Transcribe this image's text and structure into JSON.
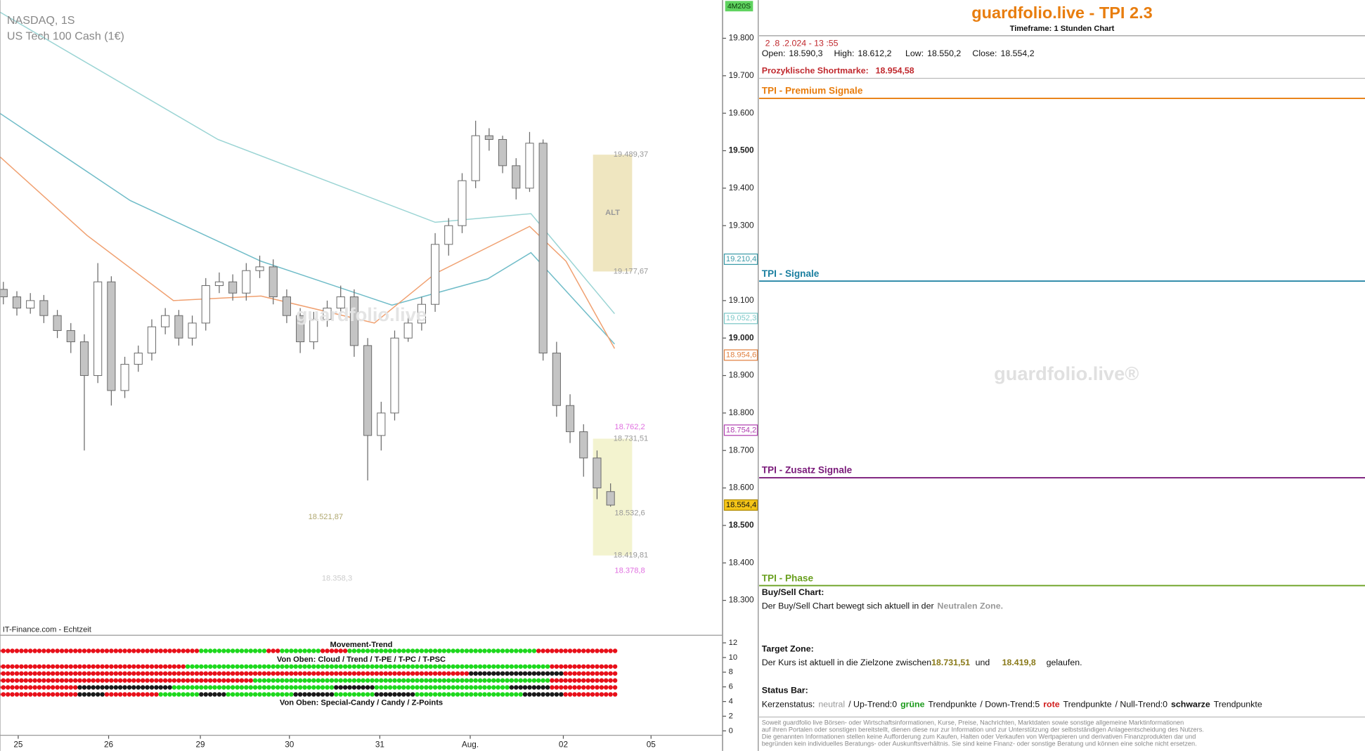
{
  "chart_data": {
    "type": "candlestick",
    "title": "NASDAQ, 1S",
    "subtitle": "US Tech 100 Cash (1€)",
    "source": "IT-Finance.com - Echtzeit",
    "timer": "4M20S",
    "watermark": "guardfolio.live",
    "x": [
      0,
      1,
      2,
      3,
      4,
      5,
      6,
      7,
      8,
      9,
      10,
      11,
      12,
      13,
      14,
      15,
      16,
      17,
      18,
      19,
      20,
      21,
      22,
      23,
      24,
      25,
      26,
      27,
      28,
      29,
      30,
      31,
      32,
      33,
      34,
      35,
      36,
      37,
      38,
      39,
      40,
      41,
      42,
      43,
      44,
      45
    ],
    "open": [
      19130,
      19110,
      19080,
      19100,
      19060,
      19020,
      18990,
      18900,
      19150,
      18860,
      18930,
      18960,
      19030,
      19060,
      19000,
      19040,
      19140,
      19150,
      19120,
      19180,
      19190,
      19110,
      19060,
      18990,
      19050,
      19080,
      19110,
      18980,
      18740,
      18800,
      19000,
      19040,
      19090,
      19250,
      19300,
      19420,
      19540,
      19530,
      19460,
      19400,
      19520,
      18960,
      18820,
      18750,
      18680,
      18590.3
    ],
    "high": [
      19150,
      19125,
      19120,
      19115,
      19075,
      19040,
      19010,
      19200,
      19165,
      18950,
      18980,
      19050,
      19080,
      19075,
      19060,
      19160,
      19175,
      19170,
      19200,
      19220,
      19210,
      19130,
      19080,
      19070,
      19100,
      19140,
      19130,
      19000,
      18830,
      19020,
      19060,
      19110,
      19280,
      19320,
      19440,
      19580,
      19560,
      19540,
      19480,
      19550,
      19530,
      18990,
      18850,
      18770,
      18700,
      18612.2
    ],
    "low": [
      19090,
      19060,
      19065,
      19040,
      19000,
      18960,
      18700,
      18880,
      18820,
      18840,
      18910,
      18940,
      19010,
      18980,
      18980,
      19020,
      19120,
      19100,
      19100,
      19160,
      19090,
      19040,
      18960,
      18970,
      19030,
      19060,
      18950,
      18620,
      18700,
      18780,
      18990,
      19020,
      19070,
      19220,
      19280,
      19400,
      19500,
      19440,
      19370,
      19390,
      18940,
      18790,
      18720,
      18630,
      18570,
      18550.2
    ],
    "close": [
      19110,
      19080,
      19100,
      19060,
      19020,
      18990,
      18900,
      19150,
      18860,
      18930,
      18960,
      19030,
      19060,
      19000,
      19040,
      19140,
      19150,
      19120,
      19180,
      19190,
      19110,
      19060,
      18990,
      19050,
      19080,
      19110,
      18980,
      18740,
      18800,
      19000,
      19040,
      19090,
      19250,
      19300,
      19420,
      19540,
      19530,
      19460,
      19400,
      19520,
      18960,
      18820,
      18750,
      18680,
      18600,
      18554.2
    ],
    "up_color": "#ffffff",
    "down_color": "#c4c4c4",
    "edge_color": "#6a6a6a",
    "xlim": [
      -0.25,
      53.3
    ],
    "xticks": [
      {
        "value": 1.1,
        "label": "25"
      },
      {
        "value": 7.8,
        "label": "26"
      },
      {
        "value": 14.6,
        "label": "29"
      },
      {
        "value": 21.2,
        "label": "30"
      },
      {
        "value": 27.9,
        "label": "31"
      },
      {
        "value": 34.6,
        "label": "Aug."
      },
      {
        "value": 41.5,
        "label": "02"
      },
      {
        "value": 48.0,
        "label": "05"
      }
    ],
    "ylim": [
      18207,
      19902
    ],
    "yticks": [
      {
        "value": 19800,
        "label": "19.800"
      },
      {
        "value": 19700,
        "label": "19.700"
      },
      {
        "value": 19600,
        "label": "19.600"
      },
      {
        "value": 19500,
        "label": "19.500"
      },
      {
        "value": 19400,
        "label": "19.400"
      },
      {
        "value": 19300,
        "label": "19.300"
      },
      {
        "value": 19100,
        "label": "19.100"
      },
      {
        "value": 19000,
        "label": "19.000"
      },
      {
        "value": 18900,
        "label": "18.900"
      },
      {
        "value": 18800,
        "label": "18.800"
      },
      {
        "value": 18700,
        "label": "18.700"
      },
      {
        "value": 18600,
        "label": "18.600"
      },
      {
        "value": 18500,
        "label": "18.500"
      },
      {
        "value": 18400,
        "label": "18.400"
      },
      {
        "value": 18300,
        "label": "18.300"
      }
    ],
    "overlays": [
      {
        "color": "#9ad4d4",
        "x": [
          -0.26,
          15.9,
          32,
          39.1,
          45.3
        ],
        "values": [
          19870,
          19530,
          19309,
          19332,
          19065
        ]
      },
      {
        "color": "#6fbcc8",
        "x": [
          -0.26,
          9.4,
          19.1,
          28.8,
          35.9,
          39.1,
          45.3
        ],
        "values": [
          19600,
          19367,
          19205,
          19088,
          19158,
          19228,
          18984
        ]
      },
      {
        "color": "#f0a070",
        "x": [
          -0.26,
          6.2,
          12.6,
          19.1,
          27.5,
          32,
          39,
          41.7,
          45.3
        ],
        "values": [
          19484,
          19274,
          19100,
          19112,
          19040,
          19172,
          19298,
          19205,
          18972
        ]
      }
    ],
    "price_markers": [
      {
        "value": 19210.4,
        "label": "19.210,4",
        "color": "#3a9aa8",
        "fill": "#ffffff"
      },
      {
        "value": 19052.3,
        "label": "19.052,3",
        "color": "#7cc8c8",
        "fill": "#ffffff"
      },
      {
        "value": 18954.6,
        "label": "18.954,6",
        "color": "#e08040",
        "fill": "#ffffff"
      },
      {
        "value": 18754.2,
        "label": "18.754,2",
        "color": "#b040b0",
        "fill": "#ffffff"
      },
      {
        "value": 18554.4,
        "label": "18.554,4",
        "color": "#b08a00",
        "fill": "#f5c518"
      }
    ],
    "zones": [
      {
        "x": [
          43.7,
          46.6
        ],
        "y": [
          19489.37,
          19177.67
        ],
        "labels": [
          "19.489,37",
          "19.177,67"
        ],
        "text": "ALT",
        "color": "#efe6c0"
      },
      {
        "x": [
          43.7,
          46.6
        ],
        "y": [
          18731.51,
          18419.81
        ],
        "labels": [
          "18.731,51",
          "18.419,81"
        ],
        "color": "#f3f3cf"
      }
    ],
    "annotations": [
      {
        "x": 45.3,
        "y": 18762.2,
        "label": "18.762,2",
        "color": "#e070e0"
      },
      {
        "x": 45.3,
        "y": 18532.6,
        "label": "18.532,6",
        "color": "#999999"
      },
      {
        "x": 45.3,
        "y": 18378.8,
        "label": "18.378,8",
        "color": "#e070e0"
      },
      {
        "x": 22.6,
        "y": 18521.87,
        "label": "18.521,87",
        "color": "#b0a870"
      },
      {
        "x": 23.6,
        "y": 18358.3,
        "label": "18.358,3",
        "color": "#cccccc"
      }
    ],
    "indicator": {
      "title": "Movement-Trend",
      "subtitle": "Von Oben: Cloud / Trend / T-PE / T-PC / T-PSC",
      "footer": "Von Oben: Special-Candy / Candy / Z-Points",
      "ylim": [
        -0.6,
        12.8
      ],
      "yticks": [
        0,
        2,
        4,
        6,
        8,
        10,
        12
      ],
      "trend": [
        {
          "color": "#e8101a",
          "n": 15
        },
        {
          "color": "#1ed81e",
          "n": 5
        },
        {
          "color": "#e8101a",
          "n": 1
        },
        {
          "color": "#1ed81e",
          "n": 3
        },
        {
          "color": "#e8101a",
          "n": 2
        },
        {
          "color": "#1ed81e",
          "n": 14
        },
        {
          "color": "#e8101a",
          "n": 6
        }
      ],
      "rows": [
        [
          {
            "color": "#e8101a",
            "n": 14
          },
          {
            "color": "#1ed81e",
            "n": 27
          },
          {
            "color": "#e8101a",
            "n": 5
          }
        ],
        [
          {
            "color": "#e8101a",
            "n": 35
          },
          {
            "color": "#1a1a1a",
            "n": 7
          },
          {
            "color": "#e8101a",
            "n": 4
          }
        ],
        [
          {
            "color": "#e8101a",
            "n": 19
          },
          {
            "color": "#1ed81e",
            "n": 22
          },
          {
            "color": "#e8101a",
            "n": 5
          }
        ],
        [
          {
            "color": "#e8101a",
            "n": 6
          },
          {
            "color": "#1a1a1a",
            "n": 7
          },
          {
            "color": "#1ed81e",
            "n": 12
          },
          {
            "color": "#1a1a1a",
            "n": 3
          },
          {
            "color": "#1ed81e",
            "n": 10
          },
          {
            "color": "#1a1a1a",
            "n": 3
          },
          {
            "color": "#e8101a",
            "n": 5
          }
        ],
        [
          {
            "color": "#e8101a",
            "n": 6
          },
          {
            "color": "#1a1a1a",
            "n": 2
          },
          {
            "color": "#e8101a",
            "n": 4
          },
          {
            "color": "#1ed81e",
            "n": 3
          },
          {
            "color": "#1a1a1a",
            "n": 2
          },
          {
            "color": "#1ed81e",
            "n": 5
          },
          {
            "color": "#1a1a1a",
            "n": 3
          },
          {
            "color": "#1ed81e",
            "n": 3
          },
          {
            "color": "#1a1a1a",
            "n": 3
          },
          {
            "color": "#1ed81e",
            "n": 8
          },
          {
            "color": "#1a1a1a",
            "n": 3
          },
          {
            "color": "#e8101a",
            "n": 4
          }
        ]
      ]
    }
  },
  "panel": {
    "title": "guardfolio.live - TPI 2.3",
    "timeframe": "Timeframe: 1 Stunden Chart",
    "date": "2 .8 .2.024 - 13 :55",
    "ohlc": [
      {
        "label": "Open:",
        "value": "18.590,3"
      },
      {
        "label": "High:",
        "value": "18.612,2"
      },
      {
        "label": "Low:",
        "value": "18.550,2"
      },
      {
        "label": "Close:",
        "value": "18.554,2"
      }
    ],
    "shortmarke": {
      "label": "Prozyklische Shortmarke:",
      "value": "18.954,58"
    },
    "sections": [
      {
        "title": "TPI - Premium Signale",
        "color": "#e87d0e"
      },
      {
        "title": "TPI - Signale",
        "color": "#1a7fa0"
      },
      {
        "title": "TPI - Zusatz Signale",
        "color": "#7a1a7a"
      },
      {
        "title": "TPI - Phase",
        "color": "#6aa020"
      }
    ],
    "watermark": "guardfolio.live®",
    "buy_sell": {
      "title": "Buy/Sell Chart:",
      "text": "Der Buy/Sell Chart bewegt sich aktuell in der",
      "zone": "Neutralen Zone."
    },
    "target": {
      "title": "Target Zone:",
      "text": "Der Kurs ist aktuell in die Zielzone zwischen",
      "from": "18.731,51",
      "and": "und",
      "to": "18.419,8",
      "end": "gelaufen."
    },
    "status": {
      "title": "Status Bar:",
      "parts": [
        "Kerzenstatus:",
        "neutral",
        "/ Up-Trend:0",
        "grüne",
        "Trendpunkte",
        "/ Down-Trend:5",
        "rote",
        "Trendpunkte",
        "/ Null-Trend:0",
        "schwarze",
        "Trendpunkte"
      ]
    },
    "disclaimer": [
      "Soweit guardfolio live Börsen- oder Wirtschaftsinformationen, Kurse, Preise, Nachrichten, Marktdaten sowie sonstige allgemeine Marktinformationen",
      "auf ihren Portalen oder sonstigen bereitstellt, dienen diese nur zur Information und zur Unterstützung der selbstständigen Anlageentscheidung des Nutzers.",
      "Die genannten Informationen stellen keine Aufforderung zum Kaufen, Halten oder Verkaufen von Wertpapieren und derivativen Finanzprodukten dar und",
      "begründen kein individuelles Beratungs- oder Auskunftsverhältnis. Sie sind keine Finanz- oder sonstige Beratung und können eine solche nicht ersetzen."
    ]
  }
}
